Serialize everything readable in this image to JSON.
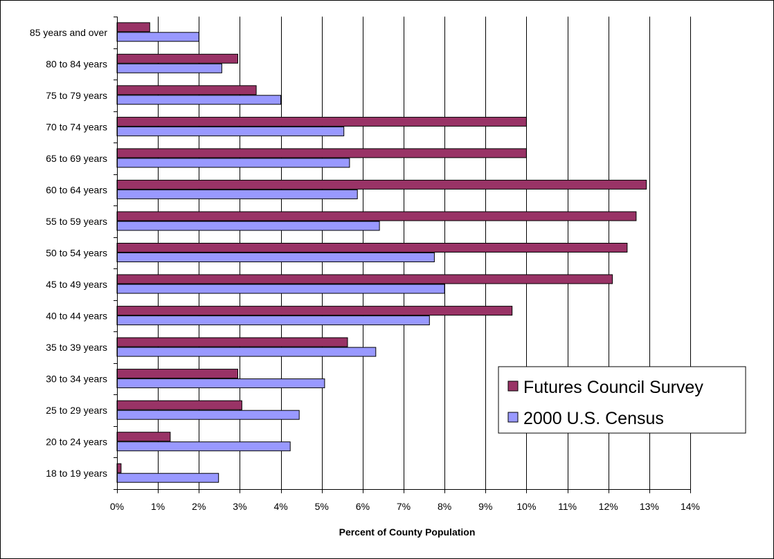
{
  "chart_data": {
    "type": "bar",
    "orientation": "horizontal",
    "title": "",
    "xlabel": "Percent of County Population",
    "ylabel": "",
    "xlim": [
      0,
      14
    ],
    "x_ticks": [
      "0%",
      "1%",
      "2%",
      "3%",
      "4%",
      "5%",
      "6%",
      "7%",
      "8%",
      "9%",
      "10%",
      "11%",
      "12%",
      "13%",
      "14%"
    ],
    "grid": "vertical",
    "legend_position": "right",
    "categories": [
      "85 years and over",
      "80 to 84 years",
      "75 to 79 years",
      "70 to 74 years",
      "65 to 69 years",
      "60 to 64 years",
      "55 to 59 years",
      "50 to 54 years",
      "45 to 49 years",
      "40 to 44 years",
      "35 to 39 years",
      "30 to 34 years",
      "25 to 29 years",
      "20 to 24 years",
      "18 to 19 years"
    ],
    "series": [
      {
        "name": "Futures Council Survey",
        "color": "#993366",
        "values": [
          0.8,
          2.95,
          3.4,
          10.0,
          10.0,
          12.93,
          12.68,
          12.46,
          12.1,
          9.65,
          5.63,
          2.95,
          3.05,
          1.3,
          0.1
        ]
      },
      {
        "name": "2000 U.S. Census",
        "color": "#9999FF",
        "values": [
          2.0,
          2.56,
          4.0,
          5.54,
          5.68,
          5.87,
          6.41,
          7.75,
          8.0,
          7.63,
          6.32,
          5.07,
          4.45,
          4.23,
          2.48
        ]
      }
    ]
  }
}
